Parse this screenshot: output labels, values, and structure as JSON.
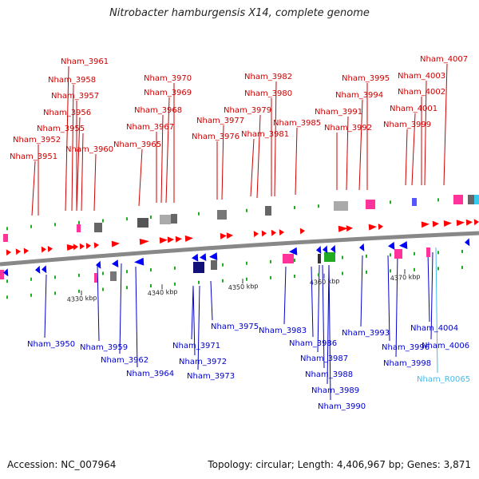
{
  "title": "Nitrobacter hamburgensis X14, complete genome",
  "footer": {
    "accession": "Accession: NC_007964",
    "summary": "Topology: circular; Length: 4,406,967 bp; Genes: 3,871"
  },
  "colors": {
    "forward_gene": "#ff0000",
    "reverse_gene": "#0000ff",
    "forward_label": "#cc0000",
    "reverse_label": "#0000cc",
    "rna_label": "#44bbee",
    "backbone": "#888888"
  },
  "ticks": [
    "4330 kbp",
    "4340 kbp",
    "4350 kbp",
    "4360 kbp",
    "4370 kbp"
  ],
  "labels_top": [
    "Nham_3961",
    "Nham_3958",
    "Nham_3957",
    "Nham_3956",
    "Nham_3955",
    "Nham_3952",
    "Nham_3951",
    "Nham_3960",
    "Nham_3970",
    "Nham_3969",
    "Nham_3968",
    "Nham_3967",
    "Nham_3965",
    "Nham_3982",
    "Nham_3980",
    "Nham_3979",
    "Nham_3977",
    "Nham_3976",
    "Nham_3981",
    "Nham_3985",
    "Nham_3995",
    "Nham_3994",
    "Nham_3991",
    "Nham_3992",
    "Nham_4007",
    "Nham_4003",
    "Nham_4002",
    "Nham_4001",
    "Nham_3999"
  ],
  "labels_bottom": [
    "Nham_3950",
    "Nham_3959",
    "Nham_3962",
    "Nham_3964",
    "Nham_3971",
    "Nham_3972",
    "Nham_3973",
    "Nham_3975",
    "Nham_3983",
    "Nham_3986",
    "Nham_3987",
    "Nham_3988",
    "Nham_3989",
    "Nham_3990",
    "Nham_3993",
    "Nham_3996",
    "Nham_3998",
    "Nham_4004",
    "Nham_4006",
    "Nham_R0065"
  ]
}
